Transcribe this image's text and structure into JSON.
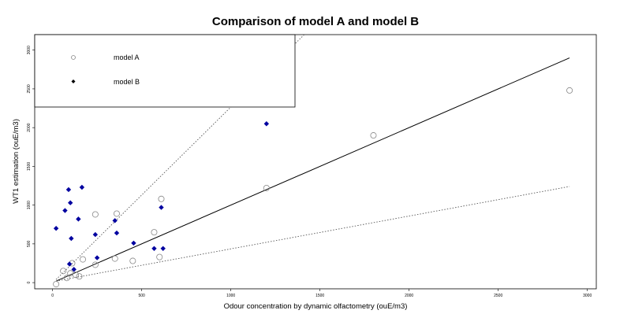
{
  "chart_data": {
    "type": "scatter",
    "title": "Comparison of model A and model B",
    "xlabel": "Odour concentration by dynamic olfactometry (ouE/m3)",
    "ylabel": "WT1 estimation (ouE/m3)",
    "xlim": [
      -100,
      3050
    ],
    "ylim": [
      -80,
      3200
    ],
    "x_ticks": [
      0,
      500,
      1000,
      1500,
      2000,
      2500,
      3000
    ],
    "y_ticks": [
      0,
      500,
      1000,
      1500,
      2000,
      2500,
      3000
    ],
    "grid": false,
    "legend_position": "top-left",
    "series": [
      {
        "name": "model A",
        "marker": "open-circle",
        "color": "#888888",
        "points": [
          [
            20,
            -20
          ],
          [
            60,
            150
          ],
          [
            80,
            60
          ],
          [
            100,
            120
          ],
          [
            110,
            250
          ],
          [
            130,
            100
          ],
          [
            150,
            80
          ],
          [
            170,
            300
          ],
          [
            240,
            230
          ],
          [
            240,
            880
          ],
          [
            350,
            310
          ],
          [
            360,
            890
          ],
          [
            450,
            280
          ],
          [
            570,
            650
          ],
          [
            600,
            330
          ],
          [
            610,
            1080
          ],
          [
            1200,
            1220
          ],
          [
            1800,
            1900
          ],
          [
            2900,
            2480
          ]
        ]
      },
      {
        "name": "model B",
        "marker": "filled-diamond",
        "color": "#0000a0",
        "points": [
          [
            20,
            700
          ],
          [
            70,
            930
          ],
          [
            90,
            1200
          ],
          [
            95,
            240
          ],
          [
            100,
            1030
          ],
          [
            105,
            570
          ],
          [
            120,
            170
          ],
          [
            145,
            820
          ],
          [
            165,
            1230
          ],
          [
            240,
            620
          ],
          [
            250,
            320
          ],
          [
            350,
            800
          ],
          [
            360,
            640
          ],
          [
            455,
            510
          ],
          [
            570,
            440
          ],
          [
            610,
            970
          ],
          [
            620,
            440
          ],
          [
            1200,
            2050
          ]
        ]
      }
    ],
    "lines": [
      {
        "style": "solid",
        "from": [
          20,
          20
        ],
        "to": [
          2900,
          2900
        ]
      },
      {
        "style": "dotted-upper",
        "from": [
          20,
          40
        ],
        "to": [
          1500,
          3400
        ]
      },
      {
        "style": "dotted-lower",
        "from": [
          20,
          20
        ],
        "to": [
          2900,
          1240
        ]
      }
    ]
  }
}
